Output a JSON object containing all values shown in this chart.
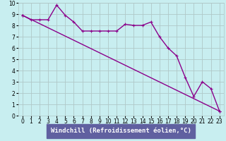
{
  "xlabel": "Windchill (Refroidissement éolien,°C)",
  "xlim": [
    -0.5,
    23.5
  ],
  "ylim": [
    0,
    10
  ],
  "xticks": [
    0,
    1,
    2,
    3,
    4,
    5,
    6,
    7,
    8,
    9,
    10,
    11,
    12,
    13,
    14,
    15,
    16,
    17,
    18,
    19,
    20,
    21,
    22,
    23
  ],
  "yticks": [
    0,
    1,
    2,
    3,
    4,
    5,
    6,
    7,
    8,
    9,
    10
  ],
  "line1_x": [
    0,
    1,
    2,
    3,
    4,
    5,
    6,
    7,
    8,
    9,
    10,
    11,
    12,
    13,
    14,
    15,
    16,
    17,
    18,
    19,
    20,
    21,
    22,
    23
  ],
  "line1_y": [
    8.9,
    8.5,
    8.5,
    8.5,
    9.8,
    8.9,
    8.3,
    7.5,
    7.5,
    7.5,
    7.5,
    7.5,
    8.1,
    8.0,
    8.0,
    8.3,
    7.0,
    6.0,
    5.3,
    3.4,
    1.7,
    3.0,
    2.4,
    0.4
  ],
  "trend_x": [
    0,
    23
  ],
  "trend_y": [
    8.9,
    0.4
  ],
  "line_color": "#8b008b",
  "bg_color": "#c8eef0",
  "grid_color": "#b0c8c8",
  "xlabel_bg": "#6060a0",
  "tick_fontsize": 5.5,
  "label_fontsize": 6.5
}
